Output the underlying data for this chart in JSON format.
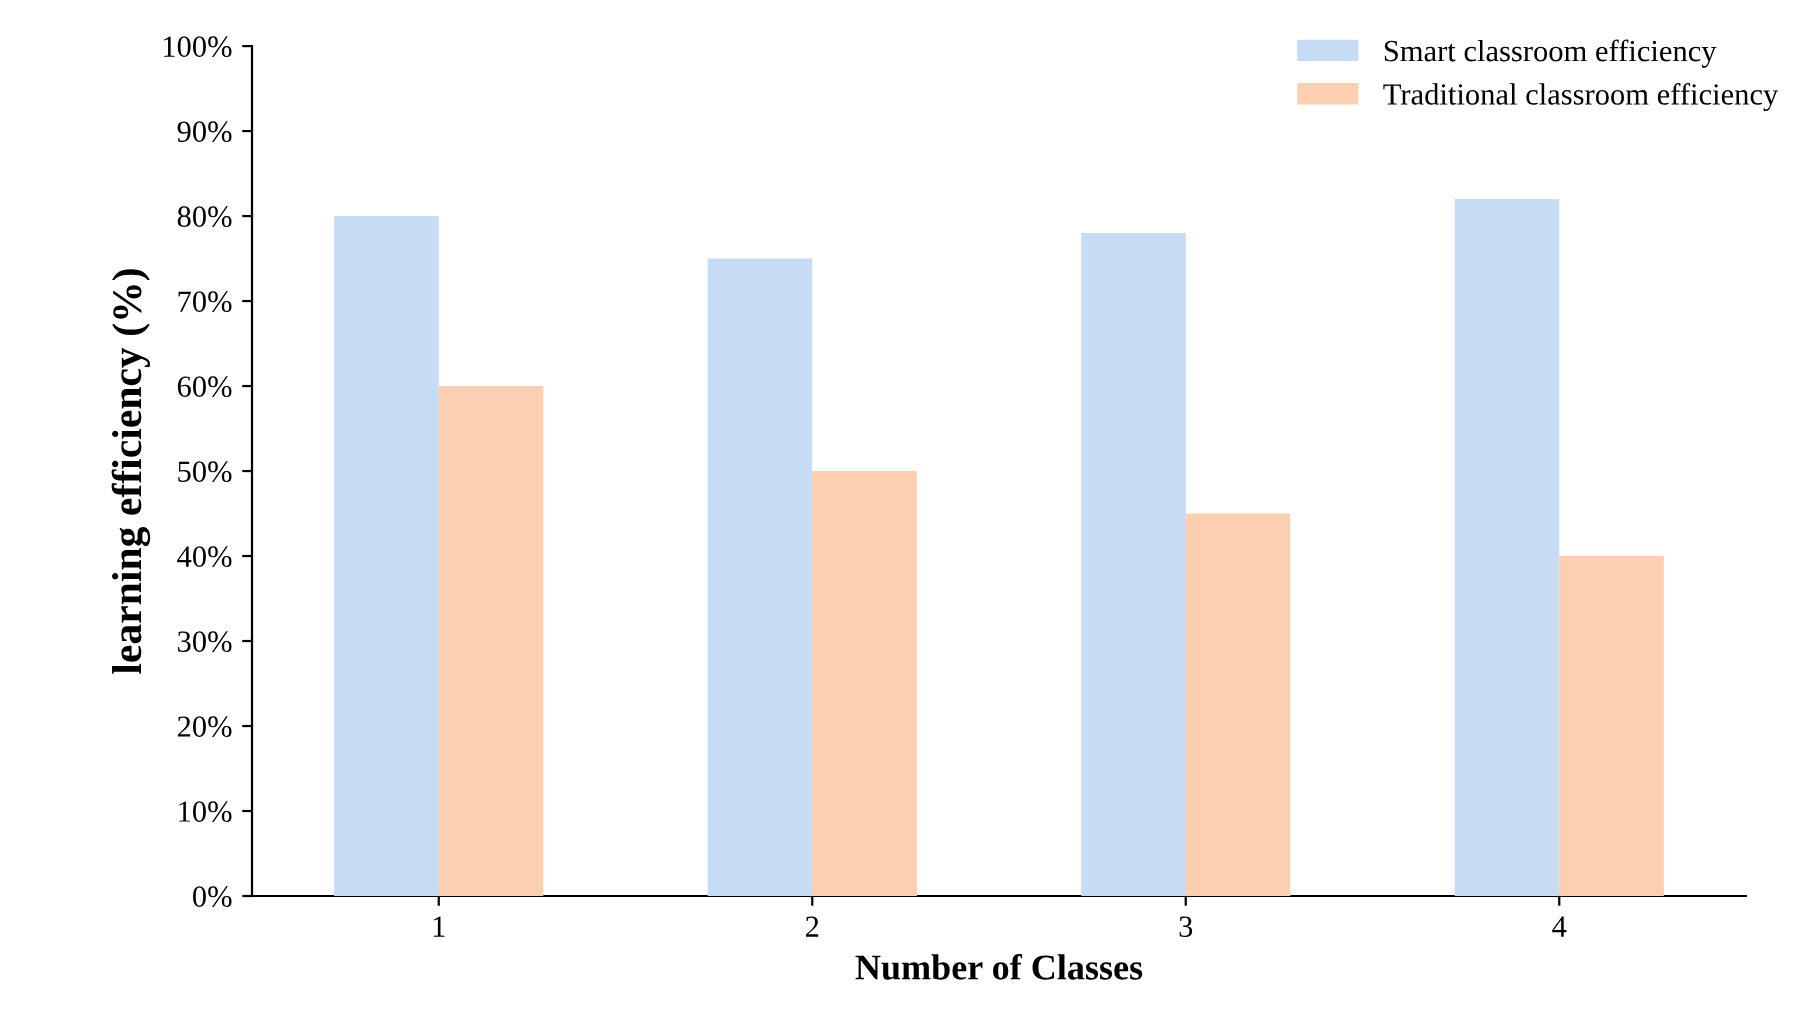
{
  "chart_data": {
    "type": "bar",
    "xlabel": "Number of Classes",
    "ylabel": "learning efficiency (%)",
    "categories": [
      "1",
      "2",
      "3",
      "4"
    ],
    "series": [
      {
        "name": "Smart classroom efficiency",
        "color": "#c6dcf4",
        "values": [
          80,
          75,
          78,
          82
        ]
      },
      {
        "name": "Traditional classroom efficiency",
        "color": "#fbcfb0",
        "values": [
          60,
          50,
          45,
          40
        ]
      }
    ],
    "ylim": [
      0,
      100
    ],
    "yticks": [
      {
        "value": 0,
        "label": "0%"
      },
      {
        "value": 10,
        "label": "10%"
      },
      {
        "value": 20,
        "label": "20%"
      },
      {
        "value": 30,
        "label": "30%"
      },
      {
        "value": 40,
        "label": "40%"
      },
      {
        "value": 50,
        "label": "50%"
      },
      {
        "value": 60,
        "label": "60%"
      },
      {
        "value": 70,
        "label": "70%"
      },
      {
        "value": 80,
        "label": "80%"
      },
      {
        "value": 90,
        "label": "90%"
      },
      {
        "value": 100,
        "label": "100%"
      }
    ],
    "grid": false,
    "legend": "top right"
  }
}
